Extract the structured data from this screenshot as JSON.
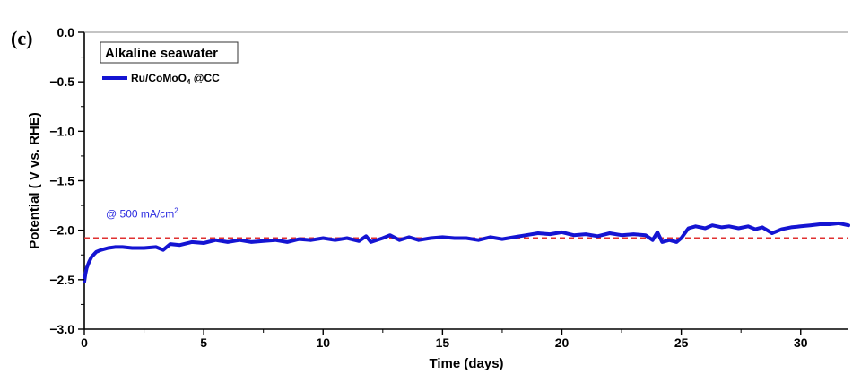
{
  "panel_label": "(c)",
  "chart_data": {
    "type": "line",
    "title": "",
    "xlabel": "Time (days)",
    "ylabel": "Potential ( V vs. RHE)",
    "xlim": [
      0,
      32
    ],
    "ylim": [
      -3.0,
      0.0
    ],
    "xticks": [
      0,
      5,
      10,
      15,
      20,
      25,
      30
    ],
    "yticks": [
      0.0,
      -0.5,
      -1.0,
      -1.5,
      -2.0,
      -2.5,
      -3.0
    ],
    "ytick_labels": [
      "0.0",
      "−0.5",
      "−1.0",
      "−1.5",
      "−2.0",
      "−2.5",
      "−3.0"
    ],
    "legend": {
      "title": "Alkaline seawater",
      "placement": "top-left",
      "entry_main": "Ru/CoMoO",
      "entry_sub": "4",
      "entry_tail": " @CC"
    },
    "annotation": {
      "main": "@ 500 mA/cm",
      "sup": "2"
    },
    "reference_line": {
      "y": -2.08,
      "color": "#e03030",
      "style": "dashed"
    },
    "series": [
      {
        "name": "Ru/CoMoO4 @CC",
        "color": "#1414d2",
        "x": [
          0,
          0.05,
          0.1,
          0.2,
          0.3,
          0.5,
          0.7,
          1.0,
          1.3,
          1.6,
          2.0,
          2.5,
          3.0,
          3.3,
          3.6,
          4.0,
          4.5,
          5.0,
          5.5,
          6.0,
          6.5,
          7.0,
          7.5,
          8.0,
          8.5,
          9.0,
          9.5,
          10.0,
          10.5,
          11.0,
          11.5,
          11.8,
          12.0,
          12.5,
          12.8,
          13.2,
          13.6,
          14.0,
          14.5,
          15.0,
          15.5,
          16.0,
          16.5,
          17.0,
          17.5,
          18.0,
          18.5,
          19.0,
          19.5,
          20.0,
          20.5,
          21.0,
          21.5,
          22.0,
          22.5,
          23.0,
          23.5,
          23.8,
          24.0,
          24.2,
          24.5,
          24.8,
          25.0,
          25.3,
          25.6,
          26.0,
          26.3,
          26.7,
          27.0,
          27.4,
          27.8,
          28.1,
          28.4,
          28.8,
          29.2,
          29.6,
          30.0,
          30.4,
          30.8,
          31.2,
          31.6,
          32.0
        ],
        "y": [
          -2.52,
          -2.44,
          -2.38,
          -2.32,
          -2.27,
          -2.22,
          -2.2,
          -2.18,
          -2.17,
          -2.17,
          -2.18,
          -2.18,
          -2.17,
          -2.2,
          -2.14,
          -2.15,
          -2.12,
          -2.13,
          -2.1,
          -2.12,
          -2.1,
          -2.12,
          -2.11,
          -2.1,
          -2.12,
          -2.09,
          -2.1,
          -2.08,
          -2.1,
          -2.08,
          -2.11,
          -2.06,
          -2.12,
          -2.08,
          -2.05,
          -2.1,
          -2.07,
          -2.1,
          -2.08,
          -2.07,
          -2.08,
          -2.08,
          -2.1,
          -2.07,
          -2.09,
          -2.07,
          -2.05,
          -2.03,
          -2.04,
          -2.02,
          -2.05,
          -2.04,
          -2.06,
          -2.03,
          -2.05,
          -2.04,
          -2.05,
          -2.1,
          -2.02,
          -2.12,
          -2.1,
          -2.12,
          -2.08,
          -1.98,
          -1.96,
          -1.98,
          -1.95,
          -1.97,
          -1.96,
          -1.98,
          -1.96,
          -1.99,
          -1.97,
          -2.03,
          -1.99,
          -1.97,
          -1.96,
          -1.95,
          -1.94,
          -1.94,
          -1.93,
          -1.95
        ]
      }
    ]
  }
}
